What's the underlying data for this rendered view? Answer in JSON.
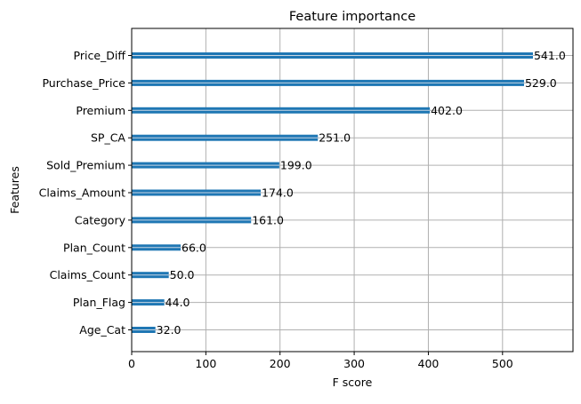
{
  "chart_data": {
    "type": "bar",
    "orientation": "horizontal",
    "title": "Feature importance",
    "xlabel": "F score",
    "ylabel": "Features",
    "categories": [
      "Price_Diff",
      "Purchase_Price",
      "Premium",
      "SP_CA",
      "Sold_Premium",
      "Claims_Amount",
      "Category",
      "Plan_Count",
      "Claims_Count",
      "Plan_Flag",
      "Age_Cat"
    ],
    "values": [
      541,
      529,
      402,
      251,
      199,
      174,
      161,
      66,
      50,
      44,
      32
    ],
    "value_labels": [
      "541.0",
      "529.0",
      "402.0",
      "251.0",
      "199.0",
      "174.0",
      "161.0",
      "66.0",
      "50.0",
      "44.0",
      "32.0"
    ],
    "xlim": [
      0,
      595
    ],
    "xticks": [
      0,
      100,
      200,
      300,
      400,
      500
    ],
    "xtick_labels": [
      "0",
      "100",
      "200",
      "300",
      "400",
      "500"
    ],
    "grid": true,
    "bar_color": "#1f77b4"
  }
}
